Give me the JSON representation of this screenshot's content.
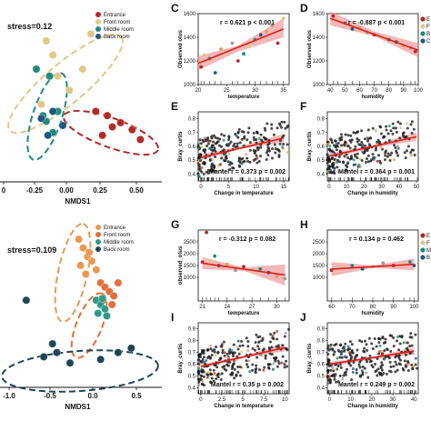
{
  "colors": {
    "Entrance": "#b22a2a",
    "Front room": "#e0c88a",
    "Middle room": "#1f8a78",
    "Back room": "#1f5a80",
    "Entrance_b": "#e89a55",
    "Front room_b": "#e06f3c",
    "Middle room_b": "#2e9a86",
    "Back room_b": "#1e4654",
    "fit": "#d82020",
    "band": "#f09090"
  },
  "chart_data": [
    {
      "id": "nmds-top",
      "type": "scatter",
      "stress_label": "stress=0.12",
      "xlabel": "NMDS1",
      "xticks": [
        "0",
        "-0.25",
        "0.00",
        "0.25",
        "0.50"
      ],
      "legend": [
        "Entrance",
        "Front room",
        "Middle room",
        "Back room"
      ],
      "series": [
        {
          "name": "Entrance",
          "color_key": "Entrance",
          "x": [
            0.18,
            0.25,
            0.33,
            0.4,
            0.22,
            0.28,
            0.45
          ],
          "y": [
            0.05,
            0.02,
            -0.03,
            -0.08,
            -0.12,
            -0.06,
            -0.15
          ]
        },
        {
          "name": "Front room",
          "color_key": "Front room",
          "x": [
            -0.12,
            -0.08,
            -0.05,
            0.02,
            0.1,
            0.15,
            -0.15
          ],
          "y": [
            0.55,
            0.45,
            0.3,
            0.2,
            0.35,
            0.6,
            0.1
          ]
        },
        {
          "name": "Middle room",
          "color_key": "Middle room",
          "x": [
            -0.18,
            -0.1,
            -0.05,
            -0.12,
            -0.08,
            -0.14
          ],
          "y": [
            0.35,
            0.3,
            0.05,
            -0.02,
            -0.1,
            0.02
          ]
        },
        {
          "name": "Back room",
          "color_key": "Back room",
          "x": [
            -0.15,
            -0.08,
            -0.02,
            -0.11
          ],
          "y": [
            0.0,
            0.05,
            -0.05,
            -0.12
          ]
        }
      ]
    },
    {
      "id": "nmds-bottom",
      "type": "scatter",
      "stress_label": "stress=0.109",
      "xlabel": "NMDS1",
      "xticks": [
        "-1.0",
        "-0.5",
        "0.0",
        "0.5"
      ],
      "legend": [
        "Entrance",
        "Front room",
        "Middle room",
        "Back room"
      ],
      "series": [
        {
          "name": "Entrance",
          "color_key": "Entrance_b",
          "x": [
            -0.2,
            -0.15,
            -0.1,
            -0.05,
            0.0,
            -0.12,
            -0.18,
            -0.08
          ],
          "y": [
            0.8,
            0.7,
            0.6,
            0.55,
            0.45,
            0.4,
            0.5,
            0.65
          ]
        },
        {
          "name": "Front room",
          "color_key": "Front room_b",
          "x": [
            0.05,
            0.1,
            0.15,
            0.2,
            0.25,
            0.08,
            0.18
          ],
          "y": [
            0.3,
            0.25,
            0.2,
            0.15,
            0.3,
            0.1,
            0.05
          ]
        },
        {
          "name": "Middle room",
          "color_key": "Middle room_b",
          "x": [
            0.0,
            0.05,
            0.1,
            0.02,
            0.12,
            0.07
          ],
          "y": [
            0.1,
            0.05,
            0.0,
            -0.05,
            -0.08,
            0.12
          ]
        },
        {
          "name": "Back room",
          "color_key": "Back room_b",
          "x": [
            -0.6,
            -0.45,
            -0.3,
            0.05,
            0.25,
            0.4,
            -0.8,
            -0.5
          ],
          "y": [
            -0.55,
            -0.5,
            -0.62,
            -0.58,
            -0.5,
            -0.45,
            0.1,
            -0.4
          ]
        }
      ]
    },
    {
      "id": "C",
      "letter": "C",
      "type": "scatter-regression",
      "stat": "r = 0.621  p < 0.001",
      "xlabel": "temperature",
      "ylabel": "Observed otus",
      "xlim": [
        20,
        36
      ],
      "ylim": [
        1000,
        1600
      ],
      "xticks": [
        20,
        25,
        30,
        35
      ],
      "yticks": [
        1000,
        1200,
        1400,
        1600
      ],
      "fit": [
        [
          20,
          1180
        ],
        [
          35,
          1470
        ]
      ],
      "band": [
        [
          20,
          1120,
          1240
        ],
        [
          27,
          1280,
          1330
        ],
        [
          35,
          1400,
          1560
        ]
      ],
      "points": [
        [
          20.5,
          1150
        ],
        [
          21,
          1250
        ],
        [
          22,
          1220
        ],
        [
          23,
          1100
        ],
        [
          24,
          1300
        ],
        [
          26,
          1350
        ],
        [
          27,
          1200
        ],
        [
          29,
          1320
        ],
        [
          30,
          1380
        ],
        [
          31,
          1420
        ],
        [
          32,
          1450
        ],
        [
          33,
          1500
        ],
        [
          34,
          1350
        ],
        [
          35,
          1560
        ],
        [
          28,
          1260
        ]
      ]
    },
    {
      "id": "D",
      "letter": "D",
      "type": "scatter-regression",
      "stat": "r = -0.887  p < 0.001",
      "xlabel": "humidity",
      "ylabel": "Observed otus",
      "xlim": [
        38,
        100
      ],
      "ylim": [
        1000,
        1600
      ],
      "xticks": [
        40,
        50,
        60,
        70,
        80,
        90,
        100
      ],
      "yticks": [
        1000,
        1200,
        1400,
        1600
      ],
      "fit": [
        [
          40,
          1560
        ],
        [
          100,
          1290
        ]
      ],
      "band": [
        [
          40,
          1500,
          1620
        ],
        [
          70,
          1410,
          1450
        ],
        [
          100,
          1230,
          1350
        ]
      ],
      "points": [
        [
          42,
          1580
        ],
        [
          45,
          1540
        ],
        [
          50,
          1520
        ],
        [
          55,
          1470
        ],
        [
          60,
          1480
        ],
        [
          65,
          1440
        ],
        [
          70,
          1420
        ],
        [
          75,
          1400
        ],
        [
          80,
          1380
        ],
        [
          85,
          1360
        ],
        [
          90,
          1330
        ],
        [
          95,
          1310
        ],
        [
          98,
          1280
        ],
        [
          88,
          1350
        ]
      ],
      "legend_abbrev": [
        "E",
        "F",
        "B",
        "C"
      ]
    },
    {
      "id": "E",
      "letter": "E",
      "type": "scatter-regression",
      "stat": "Mantel  r = 0.373  p = 0.002",
      "xlabel": "Change in temperature",
      "ylabel": "Bray_curtis",
      "xlim": [
        -0.5,
        16
      ],
      "ylim": [
        0.35,
        0.85
      ],
      "xticks": [
        0,
        5,
        10,
        15
      ],
      "yticks": [
        0.4,
        0.5,
        0.6,
        0.7,
        0.8
      ],
      "fit": [
        [
          0,
          0.52
        ],
        [
          15,
          0.66
        ]
      ],
      "band": [
        [
          0,
          0.5,
          0.54
        ],
        [
          7,
          0.58,
          0.6
        ],
        [
          15,
          0.63,
          0.69
        ]
      ],
      "density": "high",
      "seed": 11
    },
    {
      "id": "F",
      "letter": "F",
      "type": "scatter-regression",
      "stat": "Mantel  r = 0.364  p = 0.001",
      "xlabel": "Change in humidity",
      "ylabel": "Bray_curtis",
      "xlim": [
        -1,
        51
      ],
      "ylim": [
        0.35,
        0.85
      ],
      "xticks": [
        0,
        10,
        20,
        30,
        40,
        50
      ],
      "yticks": [
        0.4,
        0.5,
        0.6,
        0.7,
        0.8
      ],
      "fit": [
        [
          0,
          0.53
        ],
        [
          50,
          0.67
        ]
      ],
      "band": [
        [
          0,
          0.51,
          0.55
        ],
        [
          25,
          0.59,
          0.61
        ],
        [
          50,
          0.64,
          0.7
        ]
      ],
      "density": "high",
      "seed": 23
    },
    {
      "id": "G",
      "letter": "G",
      "type": "scatter-regression",
      "stat": "r = -0.312  p = 0.082",
      "xlabel": "temperature",
      "ylabel": "observed_otus",
      "xlim": [
        20.5,
        31.5
      ],
      "ylim": [
        0,
        3000
      ],
      "xticks": [
        21,
        24,
        27,
        30
      ],
      "yticks": [
        1000,
        1500,
        2000,
        2500
      ],
      "fit": [
        [
          21,
          1600
        ],
        [
          31,
          1100
        ]
      ],
      "band": [
        [
          21,
          1350,
          1850
        ],
        [
          26,
          1280,
          1420
        ],
        [
          31,
          650,
          1550
        ]
      ],
      "points": [
        [
          21,
          1650
        ],
        [
          22,
          1700
        ],
        [
          22.5,
          1900
        ],
        [
          23,
          1500
        ],
        [
          24,
          1550
        ],
        [
          25,
          1300
        ],
        [
          26,
          1450
        ],
        [
          27,
          1250
        ],
        [
          28,
          1350
        ],
        [
          29,
          1200
        ],
        [
          30,
          1050
        ],
        [
          31,
          950
        ],
        [
          21.5,
          2900
        ]
      ]
    },
    {
      "id": "H",
      "letter": "H",
      "type": "scatter-regression",
      "stat": "r = 0.134  p = 0.462",
      "xlabel": "humidity",
      "ylabel": "",
      "xlim": [
        58,
        102
      ],
      "ylim": [
        0,
        3000
      ],
      "xticks": [
        60,
        70,
        80,
        90,
        100
      ],
      "yticks": [
        1000,
        1500,
        2000,
        2500
      ],
      "fit": [
        [
          60,
          1350
        ],
        [
          100,
          1550
        ]
      ],
      "band": [
        [
          60,
          1050,
          1650
        ],
        [
          80,
          1400,
          1500
        ],
        [
          100,
          1300,
          1800
        ]
      ],
      "points": [
        [
          60,
          1300
        ],
        [
          65,
          1400
        ],
        [
          70,
          1500
        ],
        [
          75,
          1350
        ],
        [
          80,
          1450
        ],
        [
          85,
          1600
        ],
        [
          90,
          1500
        ],
        [
          95,
          1550
        ],
        [
          98,
          1650
        ],
        [
          100,
          1500
        ]
      ],
      "legend_abbrev": [
        "E",
        "F",
        "M",
        "B"
      ]
    },
    {
      "id": "I",
      "letter": "I",
      "type": "scatter-regression",
      "stat": "Mantel  r = 0.35  p = 0.002",
      "xlabel": "Change in temperature",
      "ylabel": "Bray_curtis",
      "xlim": [
        -0.3,
        10.5
      ],
      "ylim": [
        0.35,
        0.95
      ],
      "xticks": [
        0.0,
        2.5,
        5.0,
        7.5,
        10.0
      ],
      "yticks": [
        0.4,
        0.5,
        0.6,
        0.7,
        0.8,
        0.9
      ],
      "fit": [
        [
          0,
          0.58
        ],
        [
          10,
          0.74
        ]
      ],
      "band": [
        [
          0,
          0.56,
          0.6
        ],
        [
          5,
          0.65,
          0.67
        ],
        [
          10,
          0.71,
          0.77
        ]
      ],
      "density": "high",
      "seed": 37
    },
    {
      "id": "J",
      "letter": "J",
      "type": "scatter-regression",
      "stat": "Mantel  r = 0.249  p = 0.002",
      "xlabel": "Change in humidity",
      "ylabel": "Bray_curtis",
      "xlim": [
        -1,
        42
      ],
      "ylim": [
        0.35,
        0.95
      ],
      "xticks": [
        0,
        10,
        20,
        30,
        40
      ],
      "yticks": [
        0.4,
        0.5,
        0.6,
        0.7,
        0.8,
        0.9
      ],
      "fit": [
        [
          0,
          0.6
        ],
        [
          40,
          0.71
        ]
      ],
      "band": [
        [
          0,
          0.58,
          0.62
        ],
        [
          20,
          0.64,
          0.66
        ],
        [
          40,
          0.68,
          0.74
        ]
      ],
      "density": "high",
      "seed": 51
    }
  ]
}
